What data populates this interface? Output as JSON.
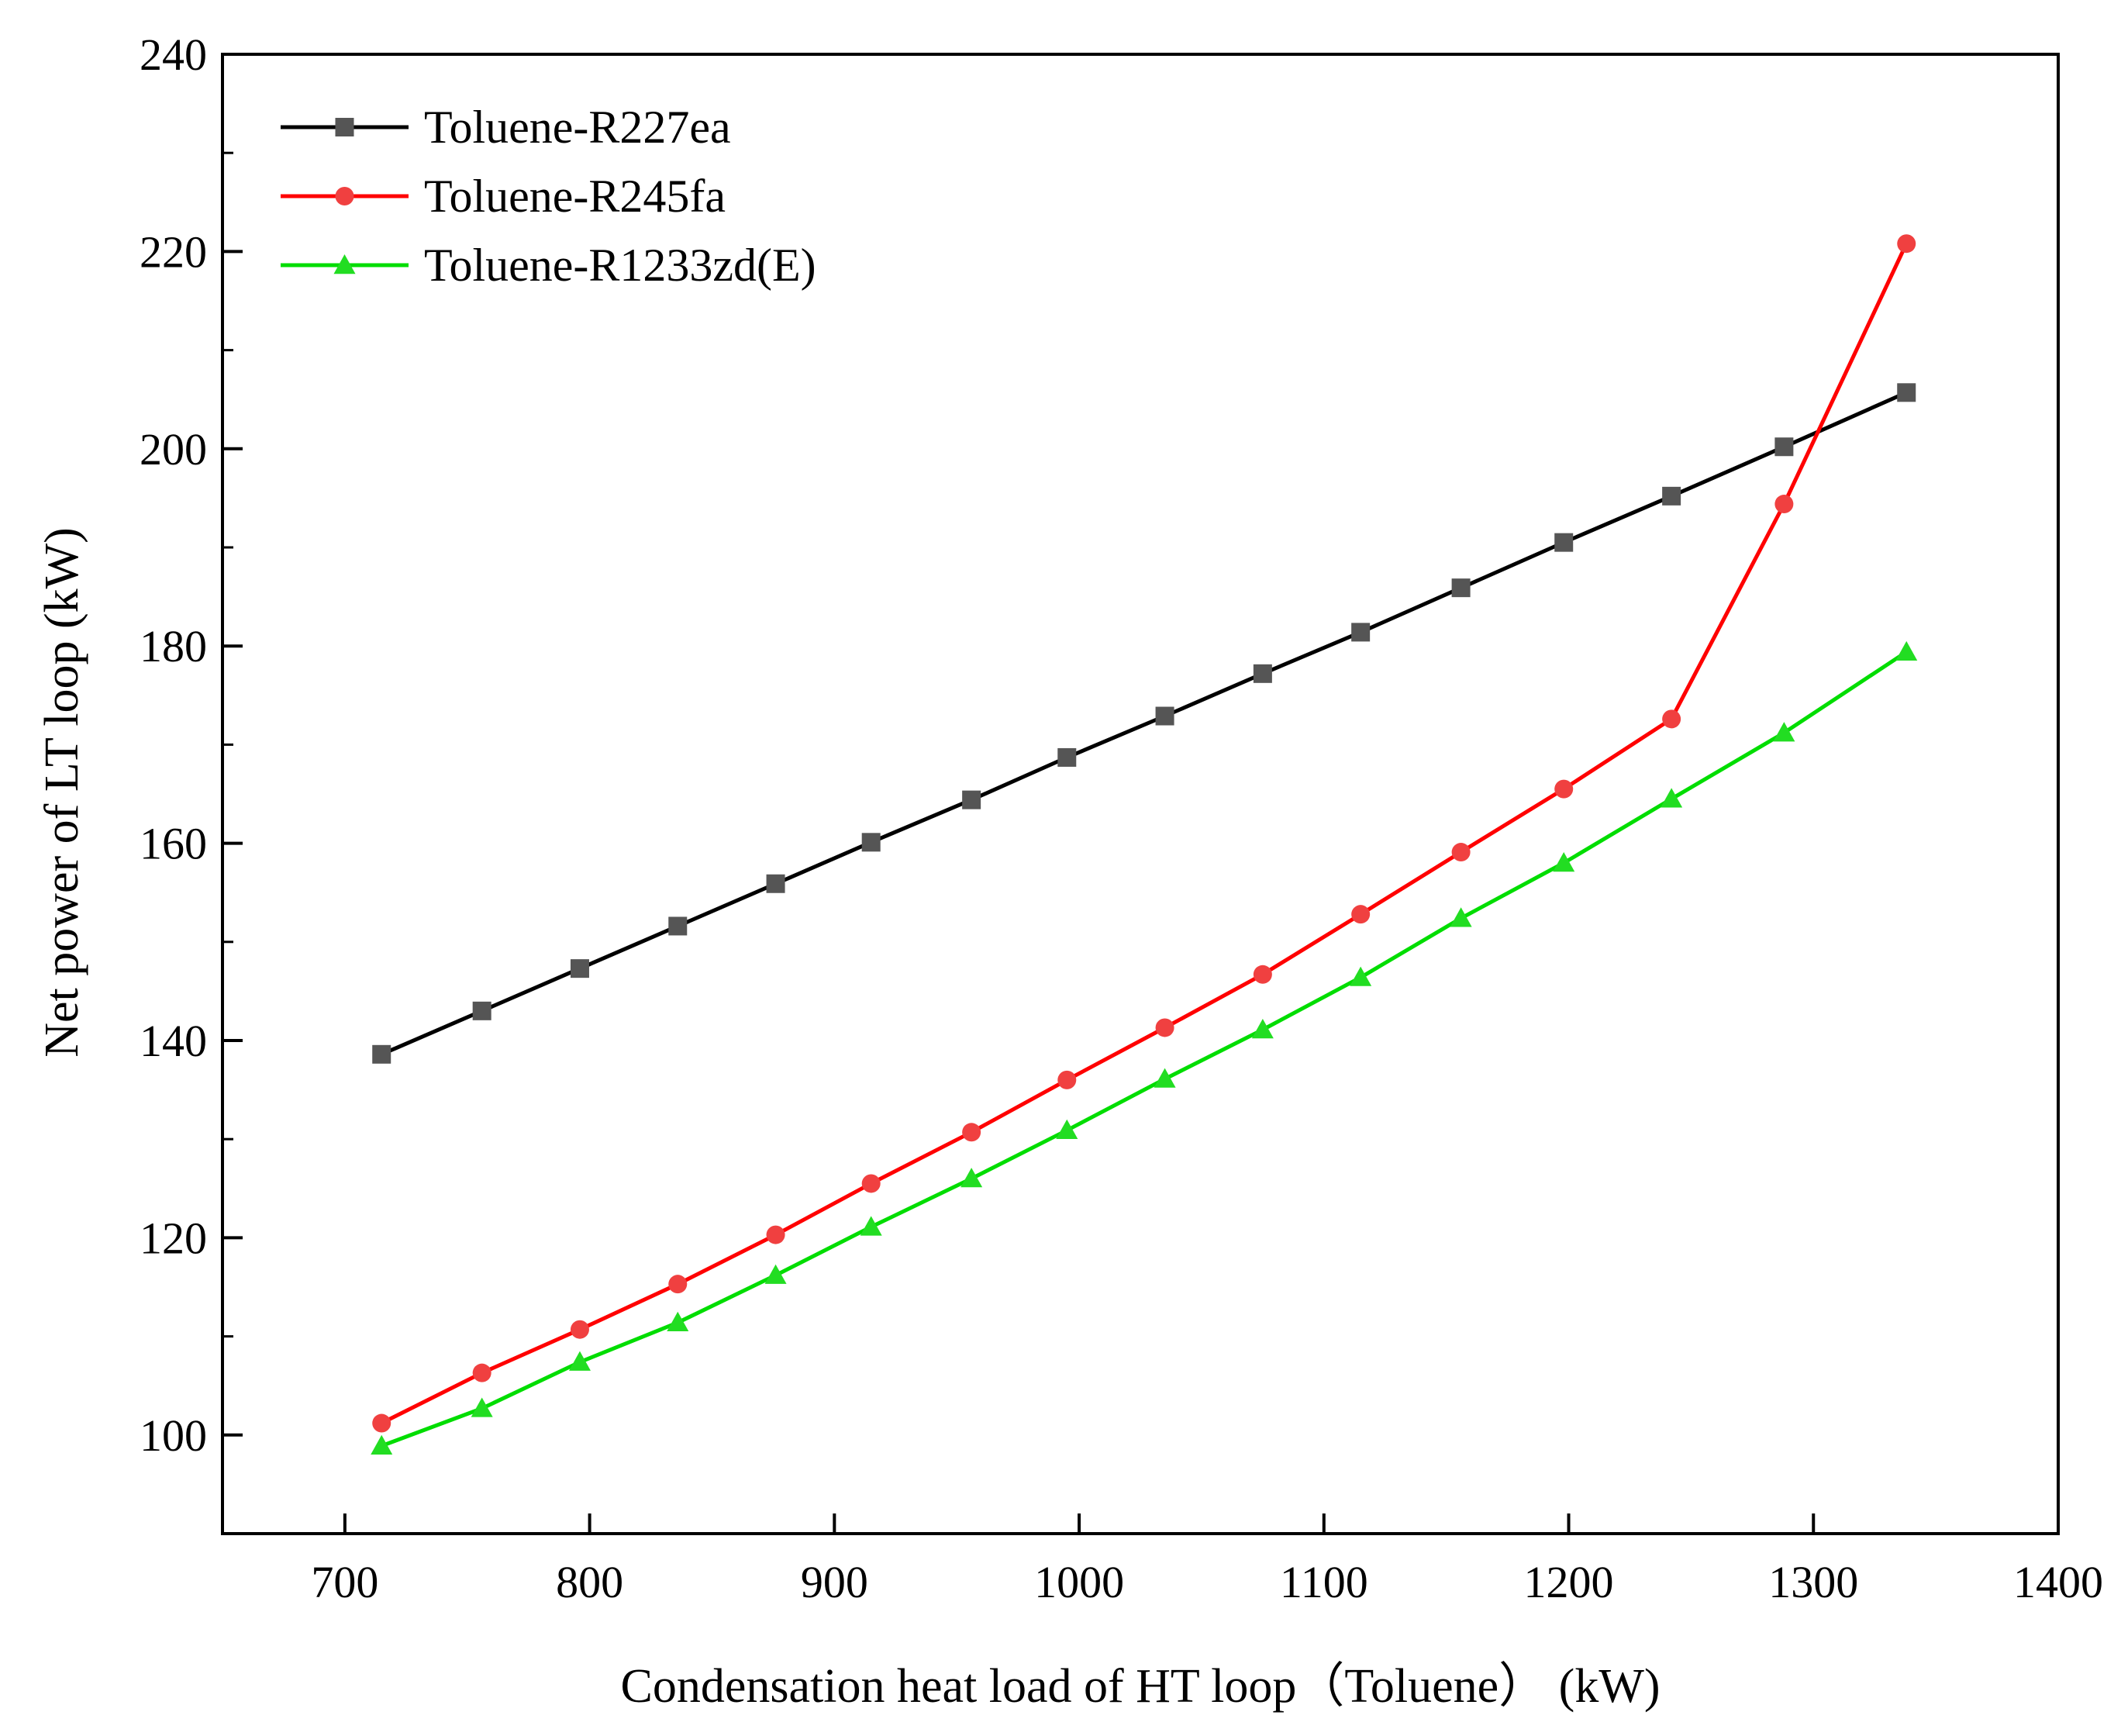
{
  "chart_data": {
    "type": "line",
    "title": "",
    "xlabel": "Condensation heat load of HT loop（Toluene） (kW)",
    "ylabel": "Net power of LT loop (kW)",
    "xlim": [
      650,
      1400
    ],
    "ylim": [
      90,
      240
    ],
    "xticks": [
      700,
      800,
      900,
      1000,
      1100,
      1200,
      1300,
      1400
    ],
    "xtick_labels": [
      "700",
      "800",
      "900",
      "1000",
      "1100",
      "1200",
      "1300",
      "1400"
    ],
    "yticks": [
      100,
      120,
      140,
      160,
      180,
      200,
      220,
      240
    ],
    "ytick_labels": [
      "100",
      "120",
      "140",
      "160",
      "180",
      "200",
      "220",
      "240"
    ],
    "x": [
      715,
      756,
      796,
      836,
      876,
      915,
      956,
      995,
      1035,
      1075,
      1115,
      1156,
      1198,
      1242,
      1288,
      1338
    ],
    "legend_position": "top-left",
    "grid": false,
    "series": [
      {
        "name": "Toluene-R227ea",
        "color": "#000000",
        "marker_color": "#555555",
        "marker": "square",
        "values": [
          138.6,
          143.0,
          147.3,
          151.6,
          155.9,
          160.1,
          164.4,
          168.7,
          172.9,
          177.2,
          181.4,
          185.9,
          190.5,
          195.2,
          200.2,
          205.7
        ]
      },
      {
        "name": "Toluene-R245fa",
        "color": "#ff0000",
        "marker_color": "#f04040",
        "marker": "circle",
        "values": [
          101.2,
          106.3,
          110.7,
          115.3,
          120.3,
          125.5,
          130.7,
          136.0,
          141.3,
          146.7,
          152.8,
          159.1,
          165.5,
          172.6,
          194.4,
          220.8
        ]
      },
      {
        "name": "Toluene-R1233zd(E)",
        "color": "#00dd00",
        "marker_color": "#22dd22",
        "marker": "triangle",
        "values": [
          98.9,
          102.7,
          107.4,
          111.4,
          116.2,
          121.1,
          126.0,
          130.9,
          136.1,
          141.1,
          146.4,
          152.4,
          158.0,
          164.5,
          171.2,
          179.4
        ]
      }
    ]
  }
}
